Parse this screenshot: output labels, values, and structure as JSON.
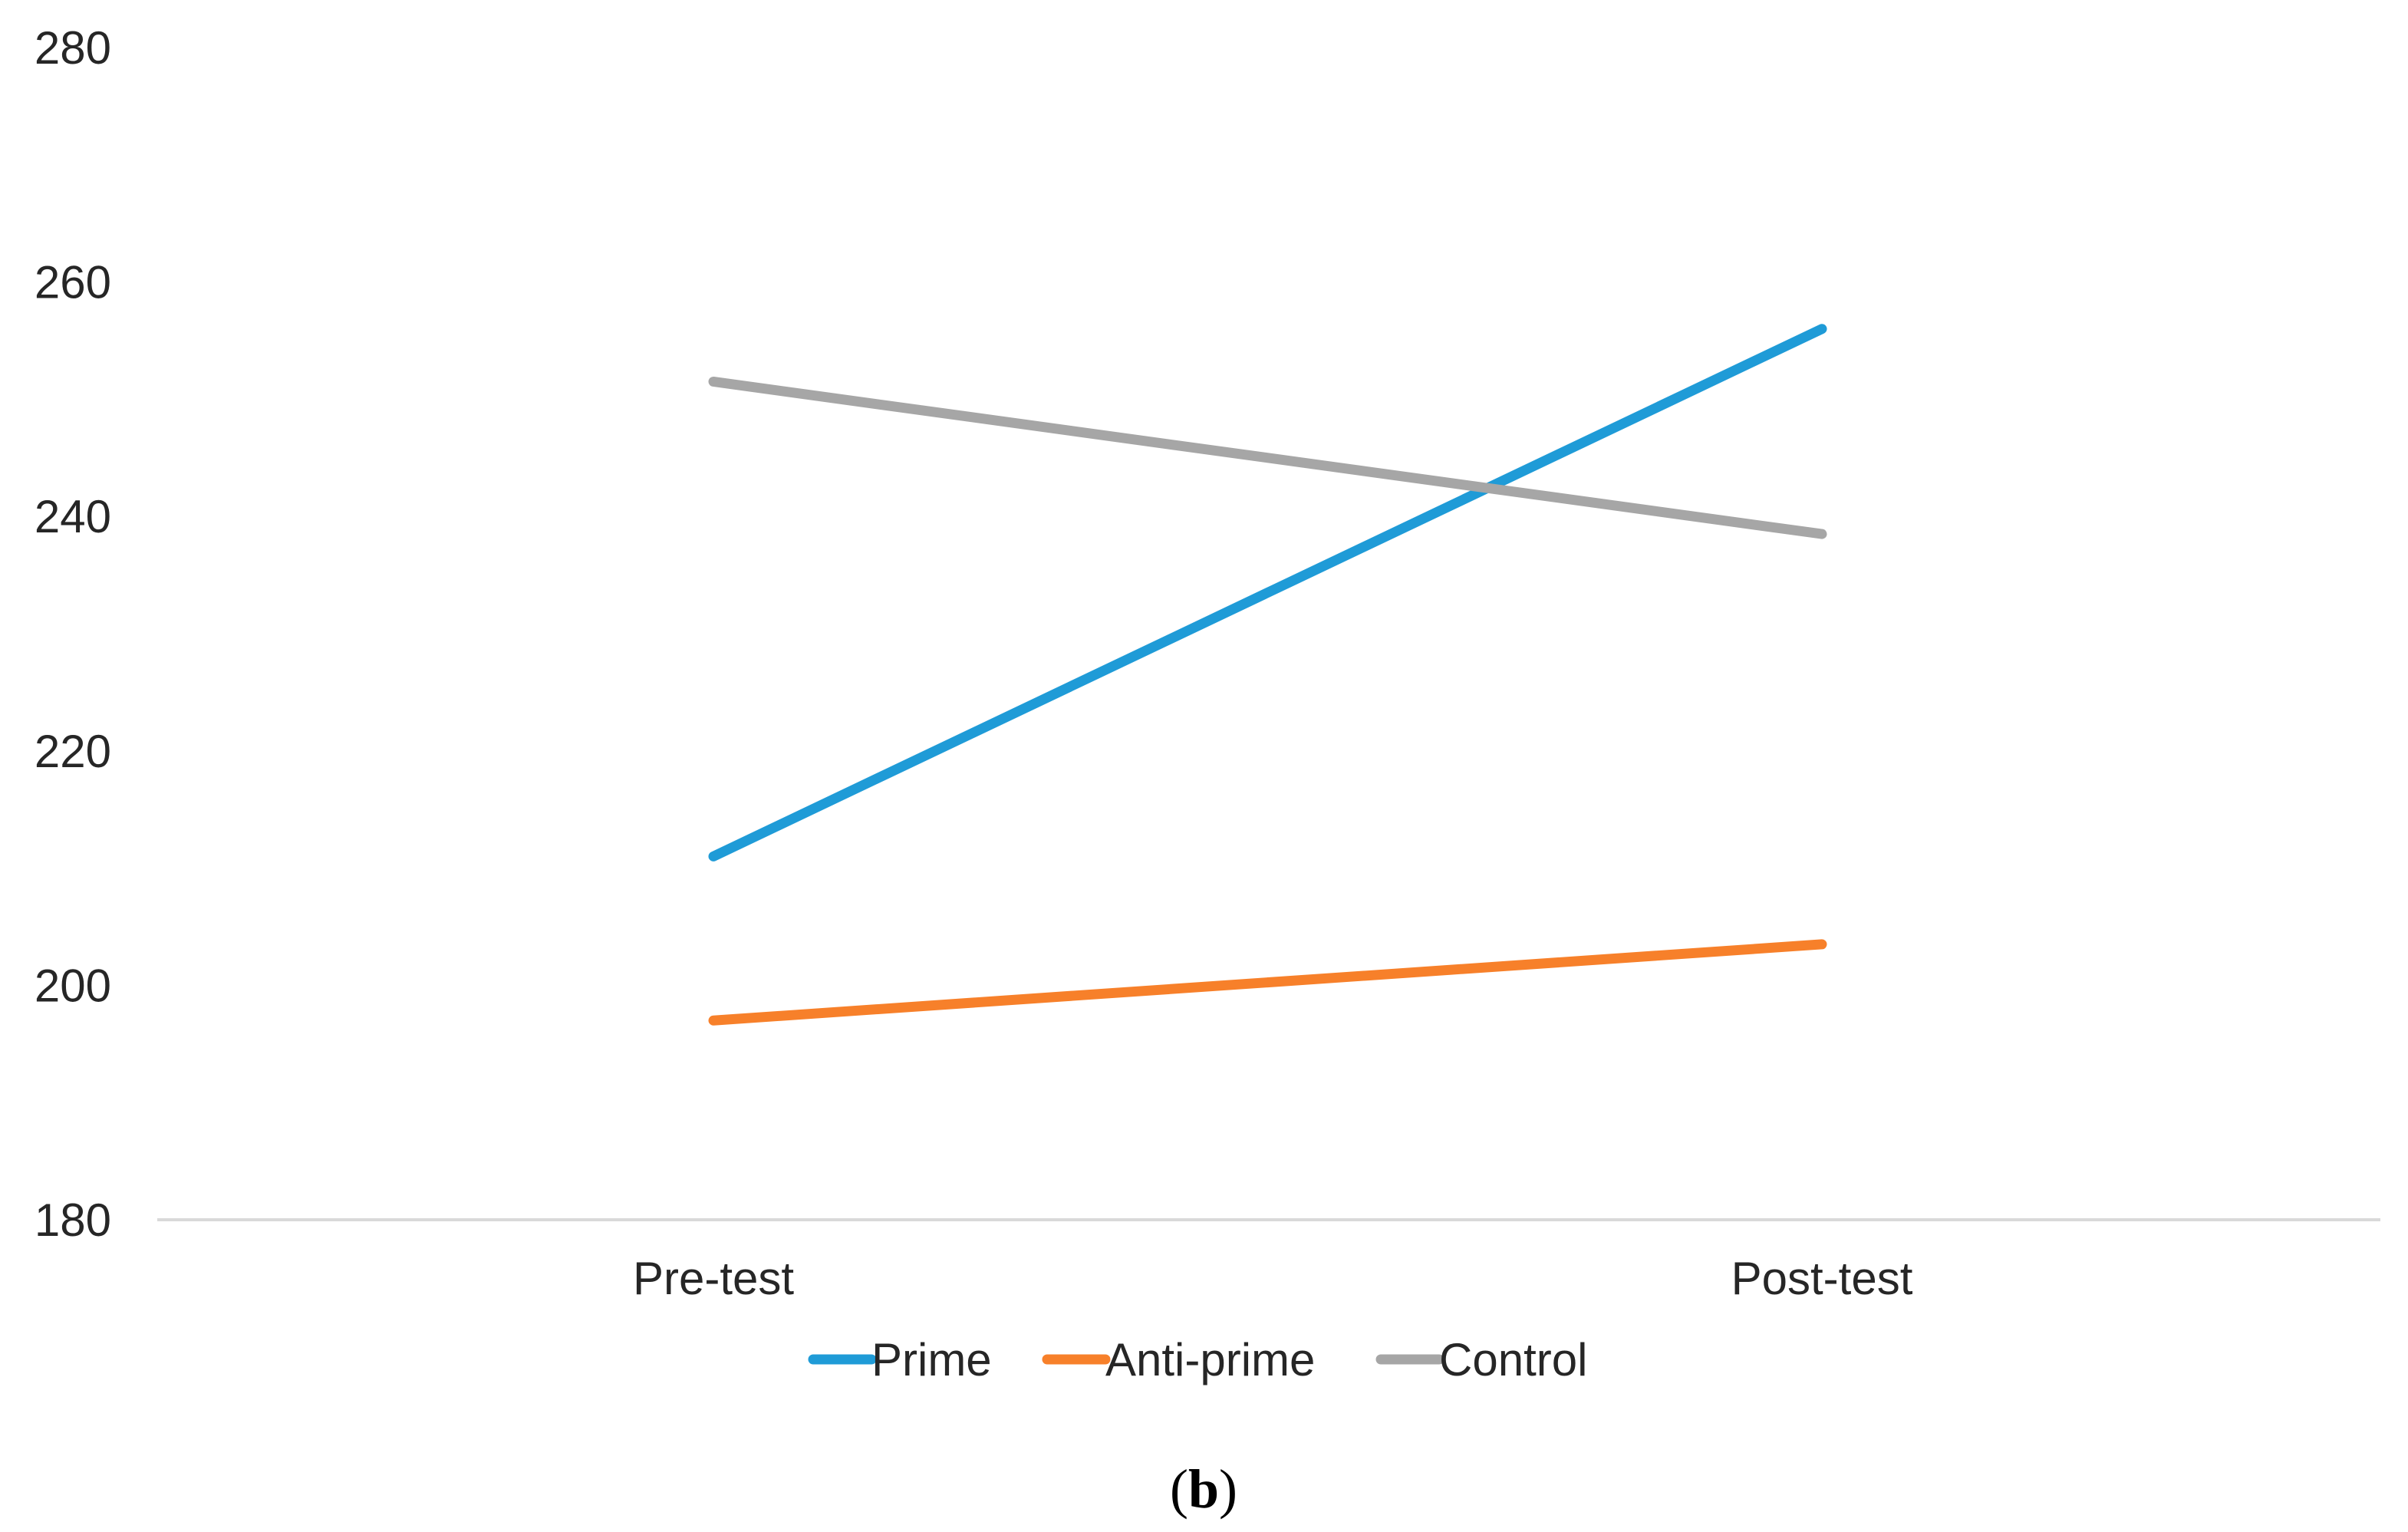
{
  "chart_data": {
    "type": "line",
    "categories": [
      "Pre-test",
      "Post-test"
    ],
    "series": [
      {
        "name": "Prime",
        "values": [
          211,
          256
        ],
        "color": "#1f9bd7"
      },
      {
        "name": "Anti-prime",
        "values": [
          197,
          203.5
        ],
        "color": "#f7802a"
      },
      {
        "name": "Control",
        "values": [
          251.5,
          238.5
        ],
        "color": "#a6a6a6"
      }
    ],
    "ylim": [
      180,
      280
    ],
    "yticks": [
      180,
      200,
      220,
      240,
      260,
      280
    ],
    "ytick_labels": [
      "180",
      "200",
      "220",
      "240",
      "260",
      "280"
    ],
    "grid": false,
    "legend_position": "bottom",
    "title": "",
    "xlabel": "",
    "ylabel": ""
  },
  "caption": {
    "open": "(",
    "letter": "b",
    "close": ")"
  }
}
